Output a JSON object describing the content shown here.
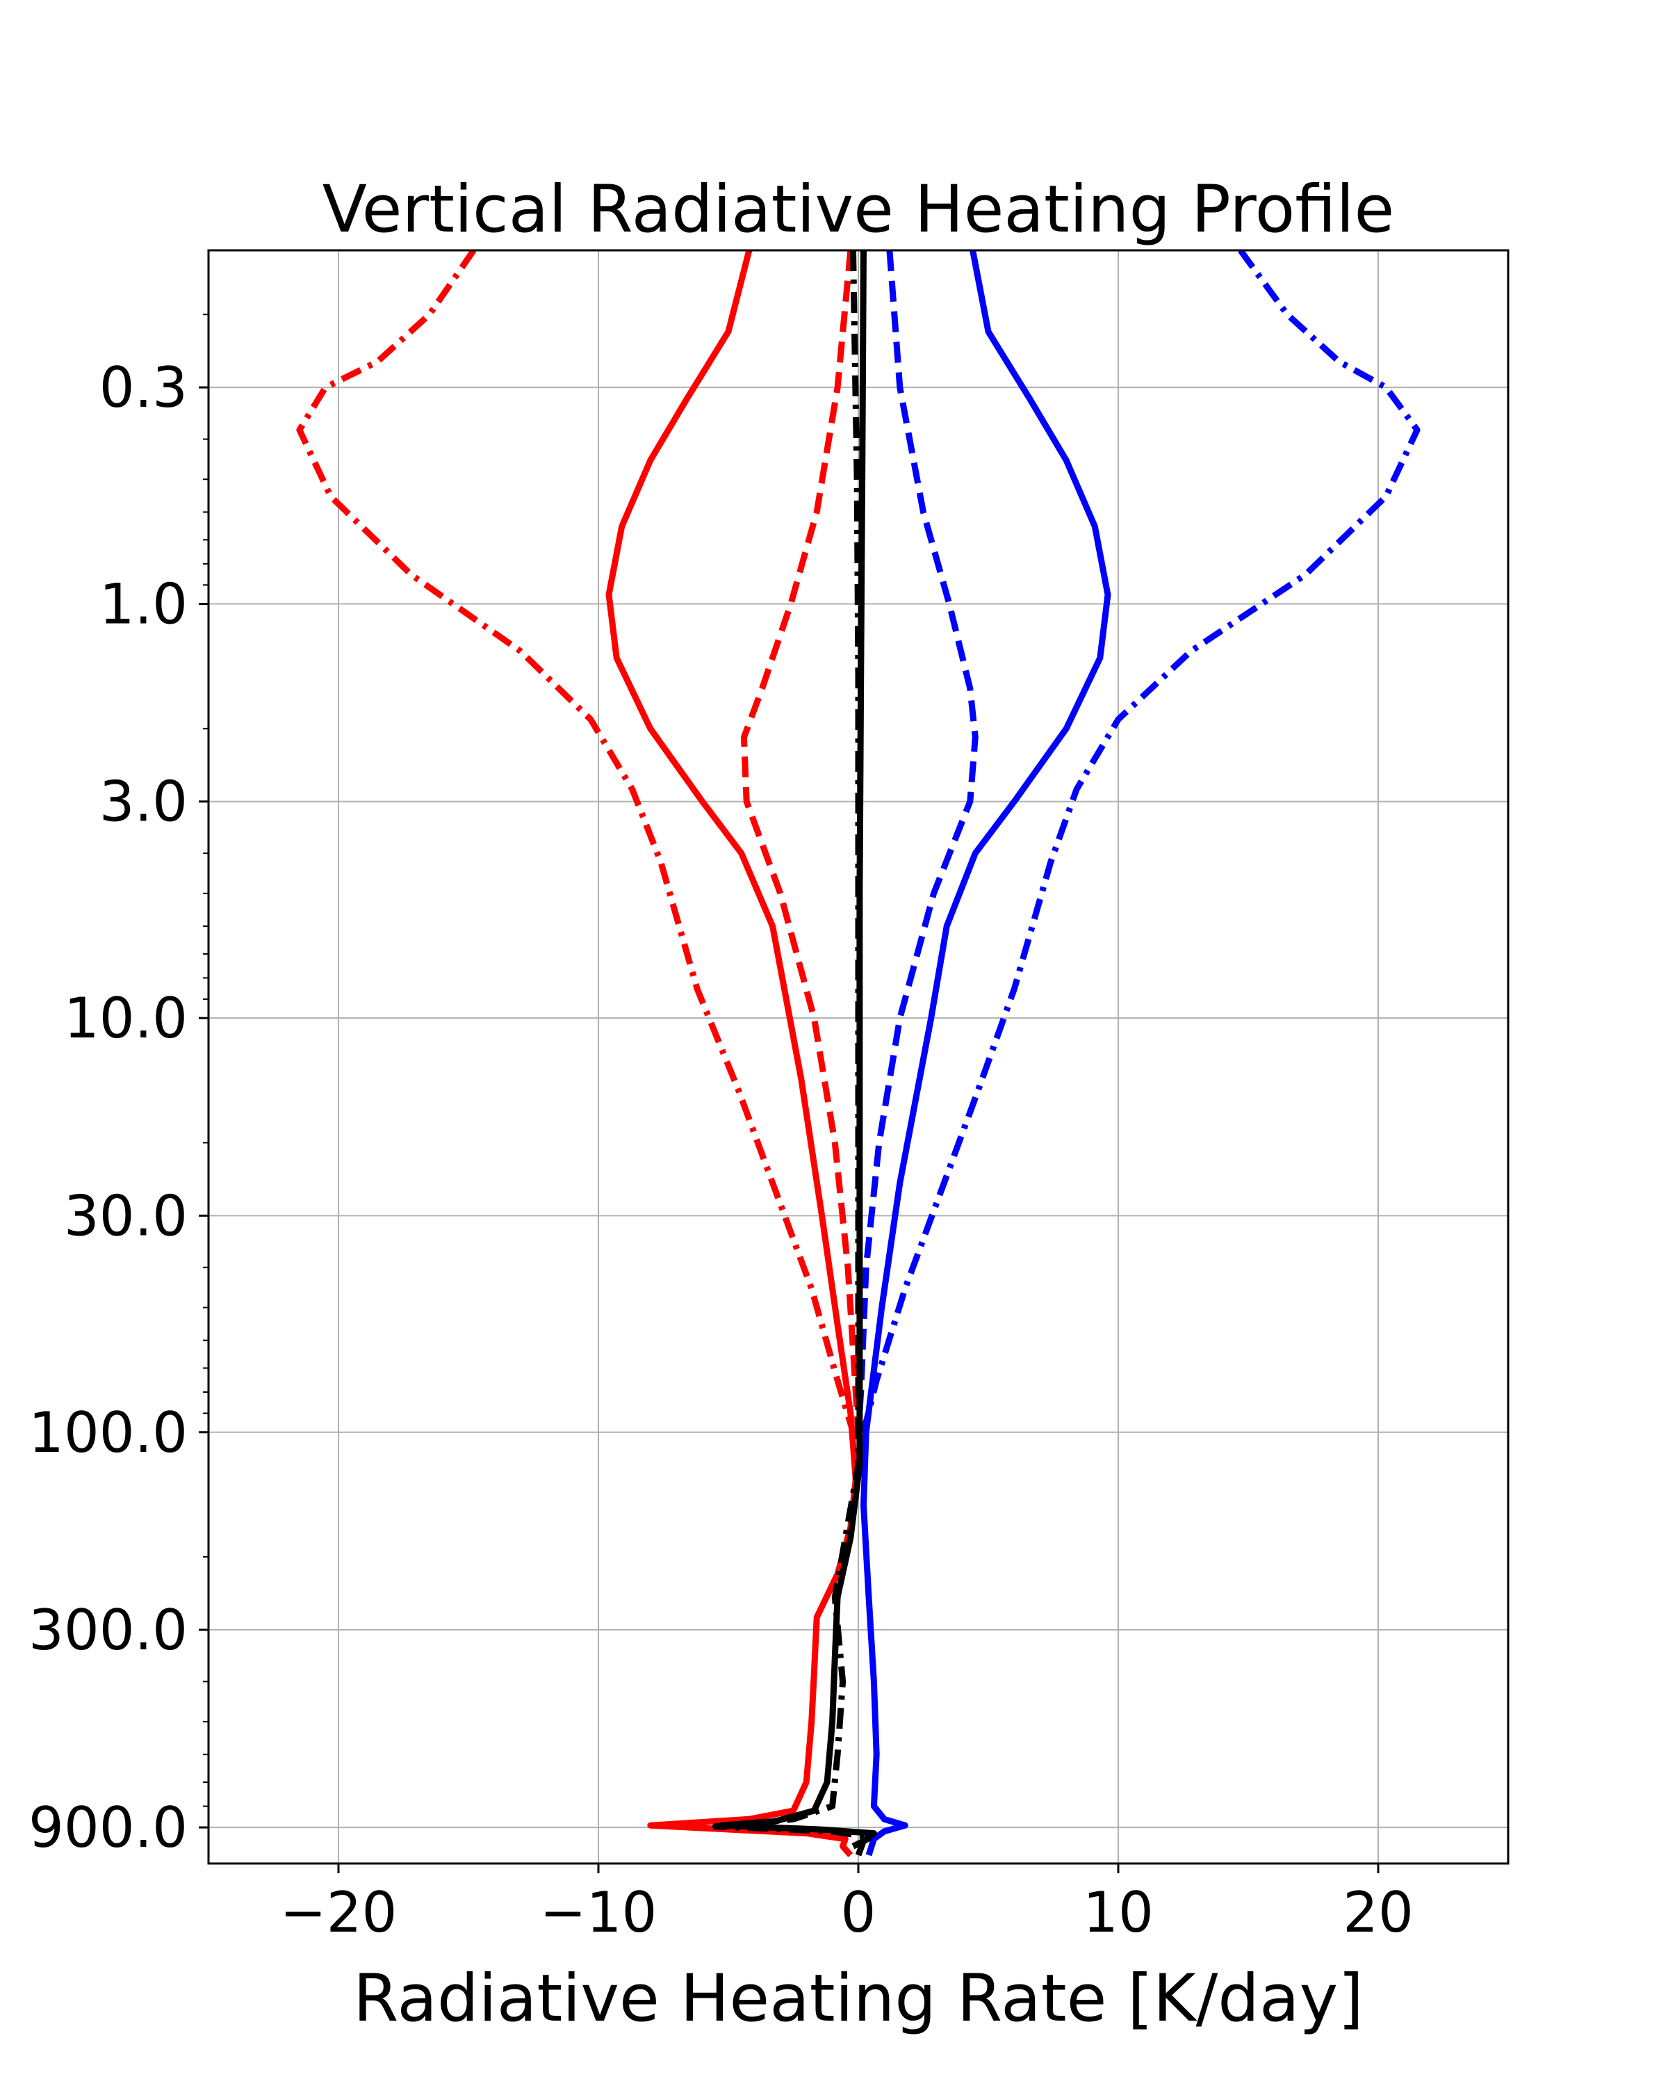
{
  "chart_data": {
    "type": "line",
    "title": "Vertical Radiative Heating Profile",
    "xlabel": "Radiative Heating Rate [K/day]",
    "ylabel": "",
    "xlim": [
      -25,
      25
    ],
    "ylim": [
      1100,
      0.14
    ],
    "yscale": "log",
    "y_inverted": true,
    "grid": true,
    "xticks": [
      -20,
      -10,
      0,
      10,
      20
    ],
    "xtick_labels": [
      "−20",
      "−10",
      "0",
      "10",
      "20"
    ],
    "yticks": [
      0.3,
      1.0,
      3.0,
      10.0,
      30.0,
      100.0,
      300.0,
      900.0
    ],
    "ytick_labels": [
      "0.3",
      "1.0",
      "3.0",
      "10.0",
      "30.0",
      "100.0",
      "300.0",
      "900.0"
    ],
    "series": [
      {
        "color": "#ff0000",
        "style": "dashdot",
        "points": [
          [
            -14.8,
            0.14
          ],
          [
            -16.5,
            0.2
          ],
          [
            -18.5,
            0.26
          ],
          [
            -20.5,
            0.3
          ],
          [
            -21.5,
            0.38
          ],
          [
            -20.3,
            0.55
          ],
          [
            -17.2,
            0.85
          ],
          [
            -13,
            1.3
          ],
          [
            -10.3,
            1.9
          ],
          [
            -8.7,
            2.8
          ],
          [
            -7.6,
            4.2
          ],
          [
            -6.2,
            8.5
          ],
          [
            -4.6,
            15
          ],
          [
            -3.3,
            25
          ],
          [
            -1.8,
            45
          ],
          [
            -0.8,
            75
          ],
          [
            -0.2,
            100
          ]
        ]
      },
      {
        "color": "#ff0000",
        "style": "solid",
        "points": [
          [
            -4.2,
            0.14
          ],
          [
            -5,
            0.22
          ],
          [
            -6.6,
            0.32
          ],
          [
            -8,
            0.45
          ],
          [
            -9.1,
            0.65
          ],
          [
            -9.6,
            0.95
          ],
          [
            -9.3,
            1.35
          ],
          [
            -8,
            2
          ],
          [
            -6,
            3
          ],
          [
            -4.5,
            4
          ],
          [
            -3.3,
            6
          ],
          [
            -2.2,
            14
          ],
          [
            -1.4,
            30
          ],
          [
            -0.8,
            55
          ],
          [
            -0.3,
            90
          ],
          [
            -0.1,
            130
          ],
          [
            -0.3,
            170
          ],
          [
            -0.8,
            220
          ],
          [
            -1.6,
            280
          ],
          [
            -1.7,
            380
          ],
          [
            -1.8,
            500
          ],
          [
            -2,
            700
          ],
          [
            -2.5,
            820
          ],
          [
            -4.2,
            860
          ],
          [
            -8,
            890
          ],
          [
            -5,
            910
          ],
          [
            -2,
            930
          ],
          [
            -0.5,
            960
          ],
          [
            -0.6,
            1000
          ],
          [
            -0.3,
            1050
          ]
        ]
      },
      {
        "color": "#ff0000",
        "style": "dashed",
        "points": [
          [
            -0.3,
            0.14
          ],
          [
            -0.8,
            0.3
          ],
          [
            -1.6,
            0.6
          ],
          [
            -2.6,
            1.0
          ],
          [
            -3.7,
            1.6
          ],
          [
            -4.4,
            2.1
          ],
          [
            -4.3,
            3.0
          ],
          [
            -3,
            5
          ],
          [
            -1.7,
            10
          ],
          [
            -0.9,
            20
          ],
          [
            -0.4,
            40
          ],
          [
            -0.1,
            80
          ],
          [
            0,
            100
          ]
        ]
      },
      {
        "color": "#0000ff",
        "style": "dashdot",
        "points": [
          [
            14.7,
            0.14
          ],
          [
            16.5,
            0.2
          ],
          [
            18.5,
            0.26
          ],
          [
            20.3,
            0.3
          ],
          [
            21.5,
            0.38
          ],
          [
            20.3,
            0.55
          ],
          [
            17.2,
            0.85
          ],
          [
            12.8,
            1.3
          ],
          [
            10,
            1.9
          ],
          [
            8.4,
            2.8
          ],
          [
            7.4,
            4.2
          ],
          [
            6,
            8.5
          ],
          [
            4.6,
            15
          ],
          [
            3.3,
            25
          ],
          [
            1.8,
            45
          ],
          [
            0.7,
            75
          ],
          [
            0.2,
            100
          ]
        ]
      },
      {
        "color": "#0000ff",
        "style": "solid",
        "points": [
          [
            4.4,
            0.14
          ],
          [
            5,
            0.22
          ],
          [
            6.6,
            0.32
          ],
          [
            8,
            0.45
          ],
          [
            9.1,
            0.65
          ],
          [
            9.6,
            0.95
          ],
          [
            9.3,
            1.35
          ],
          [
            8,
            2
          ],
          [
            6,
            3
          ],
          [
            4.5,
            4
          ],
          [
            3.4,
            6
          ],
          [
            2.8,
            10
          ],
          [
            1.6,
            25
          ],
          [
            0.9,
            50
          ],
          [
            0.3,
            100
          ],
          [
            0.2,
            150
          ],
          [
            0.4,
            250
          ],
          [
            0.6,
            400
          ],
          [
            0.7,
            600
          ],
          [
            0.6,
            800
          ],
          [
            1,
            860
          ],
          [
            1.8,
            890
          ],
          [
            1,
            920
          ],
          [
            0.6,
            960
          ],
          [
            0.4,
            1050
          ]
        ]
      },
      {
        "color": "#0000ff",
        "style": "dashed",
        "points": [
          [
            1.2,
            0.14
          ],
          [
            1.6,
            0.3
          ],
          [
            2.5,
            0.6
          ],
          [
            3.5,
            1.0
          ],
          [
            4.3,
            1.6
          ],
          [
            4.5,
            2.1
          ],
          [
            4.3,
            3.0
          ],
          [
            2.9,
            5
          ],
          [
            1.6,
            10
          ],
          [
            0.8,
            20
          ],
          [
            0.3,
            40
          ],
          [
            0.1,
            80
          ],
          [
            0,
            100
          ]
        ]
      },
      {
        "color": "#000000",
        "style": "solid",
        "points": [
          [
            0.2,
            0.14
          ],
          [
            0.15,
            0.5
          ],
          [
            0.1,
            1.5
          ],
          [
            0.05,
            5
          ],
          [
            0.05,
            20
          ],
          [
            0.05,
            60
          ],
          [
            0.05,
            120
          ],
          [
            -0.3,
            180
          ],
          [
            -0.8,
            250
          ],
          [
            -0.9,
            350
          ],
          [
            -1,
            500
          ],
          [
            -1.2,
            700
          ],
          [
            -1.7,
            820
          ],
          [
            -3.2,
            870
          ],
          [
            -5.3,
            890
          ],
          [
            -1.5,
            910
          ],
          [
            0.6,
            930
          ],
          [
            0.2,
            970
          ],
          [
            0,
            1050
          ]
        ]
      },
      {
        "color": "#000000",
        "style": "dashdot",
        "points": [
          [
            -0.2,
            0.14
          ],
          [
            -0.05,
            0.5
          ],
          [
            0,
            1.5
          ],
          [
            0,
            5
          ],
          [
            0,
            20
          ],
          [
            0,
            60
          ],
          [
            0,
            120
          ],
          [
            -0.5,
            180
          ],
          [
            -0.9,
            250
          ],
          [
            -0.6,
            400
          ],
          [
            -0.8,
            600
          ],
          [
            -1,
            800
          ],
          [
            -2.5,
            860
          ],
          [
            -5.5,
            895
          ],
          [
            -1,
            920
          ],
          [
            0.5,
            950
          ],
          [
            -0.2,
            1000
          ]
        ]
      }
    ]
  }
}
